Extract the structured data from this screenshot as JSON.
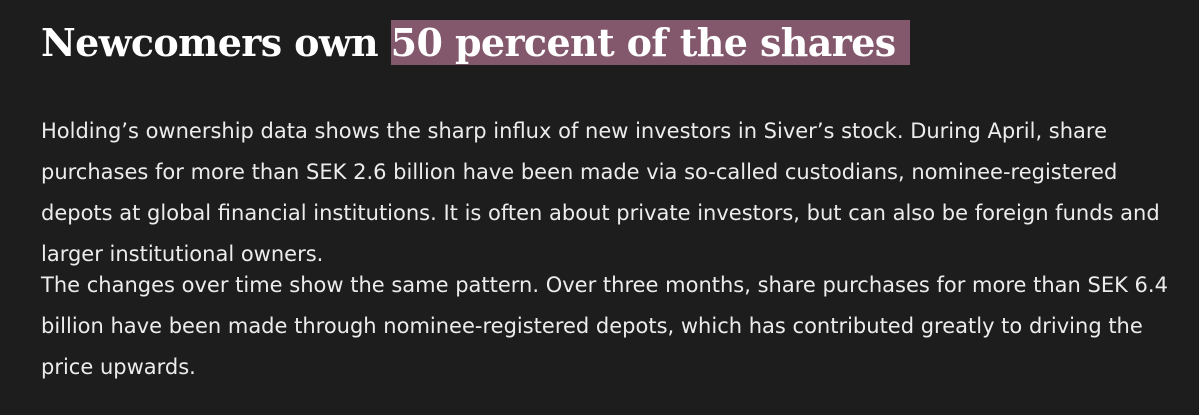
{
  "article": {
    "headline": {
      "prefix": "Newcomers own ",
      "highlighted": "50 percent of the shares"
    },
    "paragraphs": [
      {
        "lines": [
          "Holding’s ownership data shows the sharp influx of new investors in Siver’s stock. During April, share",
          "purchases for more than SEK 2.6 billion have been made via so-called custodians, nominee-registered",
          "depots at global financial institutions. It is often about private investors, but can also be foreign funds and",
          "larger institutional owners."
        ]
      },
      {
        "lines": [
          "The changes over time show the same pattern. Over three months, share purchases for more than SEK 6.4",
          "billion have been made through nominee-registered depots, which has contributed greatly to driving the",
          "price upwards."
        ]
      }
    ],
    "colors": {
      "background": "#1d1d1d",
      "highlight": "#84586c",
      "text": "#ececec"
    }
  }
}
